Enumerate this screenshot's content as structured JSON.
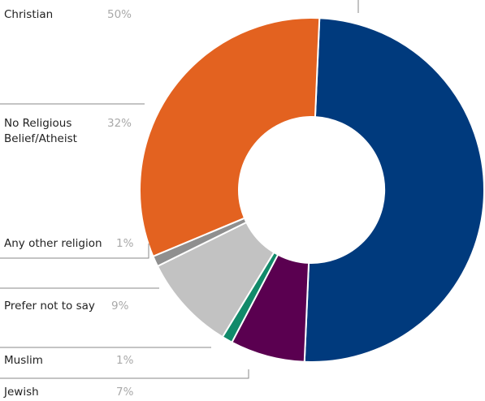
{
  "chart_data": {
    "type": "pie",
    "title": "",
    "donut": true,
    "categories": [
      "Christian",
      "Jewish",
      "Muslim",
      "Prefer not to say",
      "Any other religion",
      "No Religious Belief/Atheist"
    ],
    "values": [
      50,
      7,
      1,
      9,
      1,
      32
    ],
    "value_labels": [
      "50%",
      "7%",
      "1%",
      "9%",
      "1%",
      "32%"
    ],
    "label_lines": [
      [
        "Christian"
      ],
      [
        "Jewish"
      ],
      [
        "Muslim"
      ],
      [
        "Prefer not to say"
      ],
      [
        "Any other religion"
      ],
      [
        "No Religious",
        "Belief/Atheist"
      ]
    ],
    "colors": [
      "#003a7d",
      "#5a0050",
      "#118a6a",
      "#c2c2c2",
      "#8f8f8f",
      "#e36220"
    ],
    "legend": "left"
  }
}
